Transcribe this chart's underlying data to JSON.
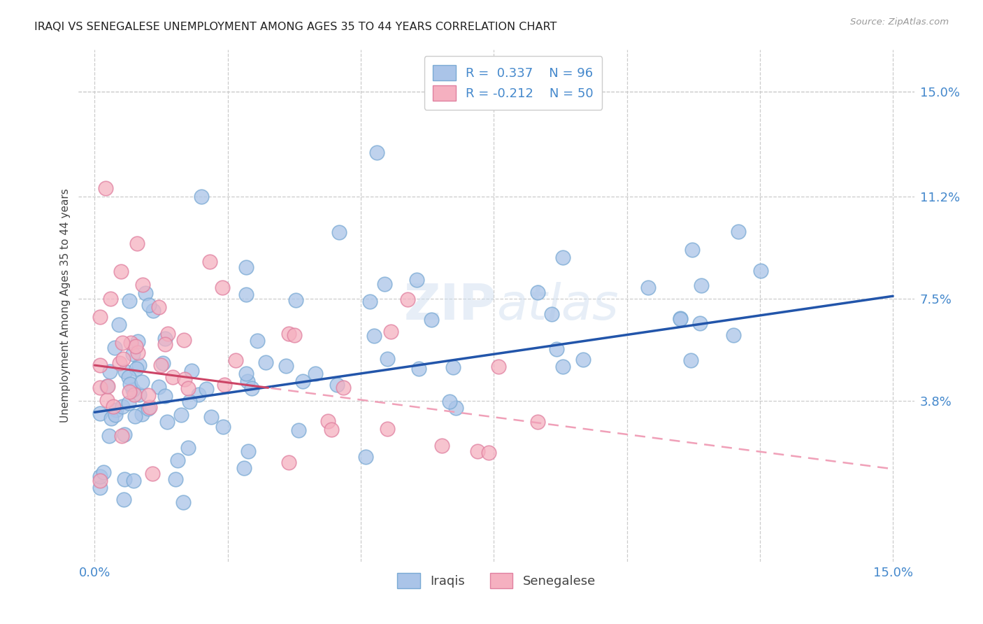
{
  "title": "IRAQI VS SENEGALESE UNEMPLOYMENT AMONG AGES 35 TO 44 YEARS CORRELATION CHART",
  "source": "Source: ZipAtlas.com",
  "ylabel": "Unemployment Among Ages 35 to 44 years",
  "xlim": [
    0.0,
    0.15
  ],
  "ylim": [
    -0.02,
    0.165
  ],
  "iraqi_R": 0.337,
  "iraqi_N": 96,
  "senegalese_R": -0.212,
  "senegalese_N": 50,
  "iraqi_color": "#aac4e8",
  "iraqi_edge_color": "#7aaad4",
  "iraqi_line_color": "#2255aa",
  "senegalese_color": "#f5b0c0",
  "senegalese_edge_color": "#e080a0",
  "senegalese_line_color": "#cc4466",
  "senegalese_dash_color": "#f0a0b8",
  "background_color": "#ffffff",
  "grid_color": "#cccccc",
  "axis_label_color": "#4488cc",
  "ytick_positions": [
    0.038,
    0.075,
    0.112,
    0.15
  ],
  "ytick_labels": [
    "3.8%",
    "7.5%",
    "11.2%",
    "15.0%"
  ]
}
